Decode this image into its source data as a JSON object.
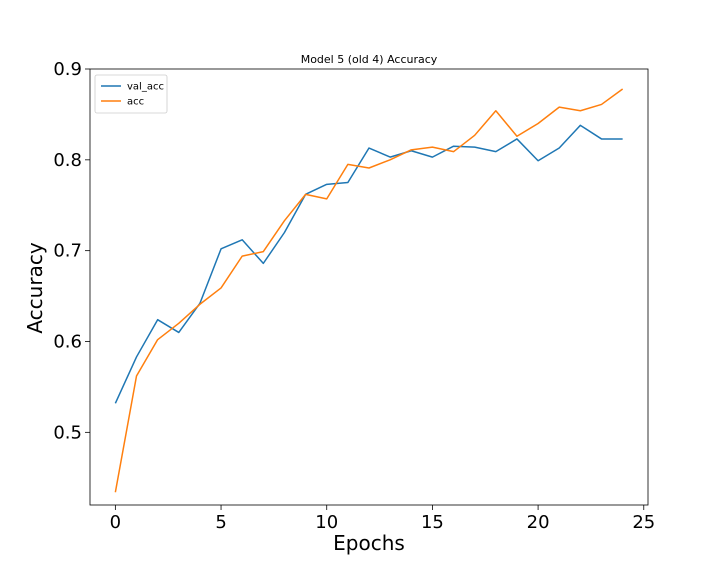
{
  "chart_data": {
    "type": "line",
    "title": "Model 5 (old 4) Accuracy",
    "xlabel": "Epochs",
    "ylabel": "Accuracy",
    "xlim": [
      -1.2,
      25.2
    ],
    "ylim": [
      0.42,
      0.9
    ],
    "xticks": [
      0,
      5,
      10,
      15,
      20,
      25
    ],
    "yticks": [
      0.5,
      0.6,
      0.7,
      0.8,
      0.9
    ],
    "xtick_labels": [
      "0",
      "5",
      "10",
      "15",
      "20",
      "25"
    ],
    "ytick_labels": [
      "0.5",
      "0.6",
      "0.7",
      "0.8",
      "0.9"
    ],
    "grid": false,
    "legend": "top-left",
    "x": [
      0,
      1,
      2,
      3,
      4,
      5,
      6,
      7,
      8,
      9,
      10,
      11,
      12,
      13,
      14,
      15,
      16,
      17,
      18,
      19,
      20,
      21,
      22,
      23,
      24
    ],
    "series": [
      {
        "name": "val_acc",
        "color": "#1f77b4",
        "values": [
          0.532,
          0.583,
          0.624,
          0.61,
          0.642,
          0.702,
          0.712,
          0.686,
          0.72,
          0.762,
          0.773,
          0.775,
          0.813,
          0.803,
          0.81,
          0.803,
          0.815,
          0.814,
          0.809,
          0.823,
          0.799,
          0.813,
          0.838,
          0.823,
          0.823
        ]
      },
      {
        "name": "acc",
        "color": "#ff7f0e",
        "values": [
          0.434,
          0.562,
          0.602,
          0.62,
          0.641,
          0.659,
          0.694,
          0.699,
          0.733,
          0.762,
          0.757,
          0.795,
          0.791,
          0.8,
          0.811,
          0.814,
          0.809,
          0.827,
          0.854,
          0.826,
          0.84,
          0.858,
          0.854,
          0.861,
          0.878
        ]
      }
    ]
  }
}
